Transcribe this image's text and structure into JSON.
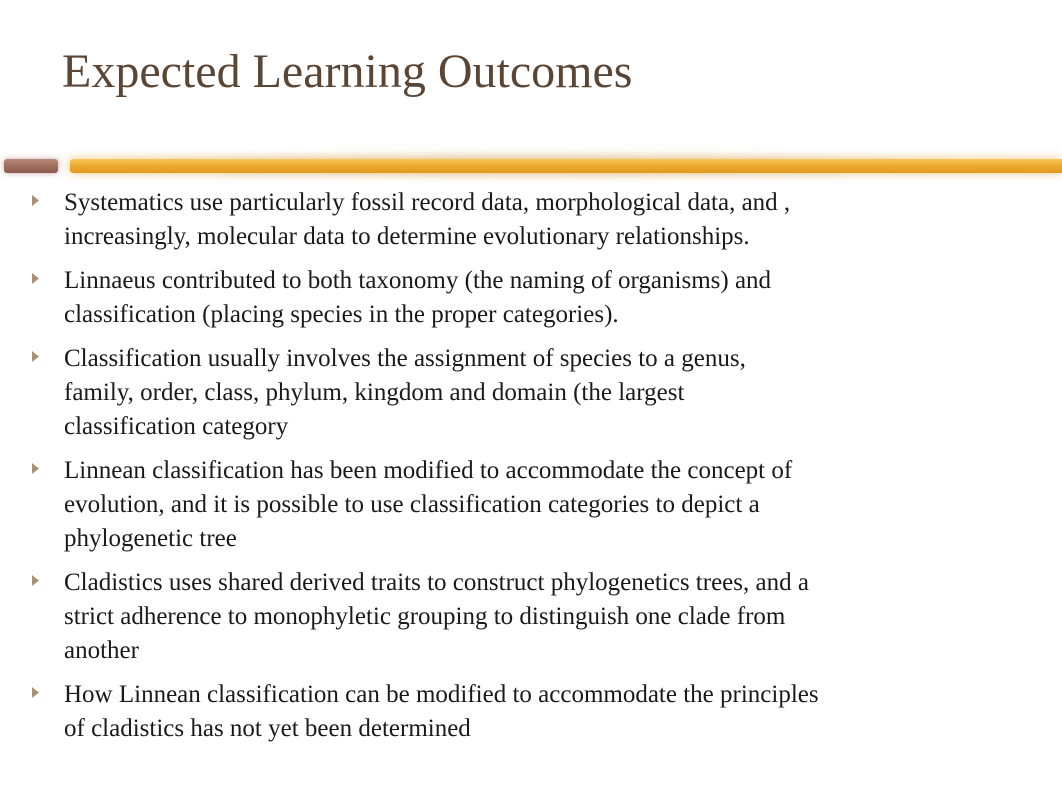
{
  "slide": {
    "title": "Expected Learning Outcomes",
    "title_color": "#5b4636",
    "title_fontsize": 48,
    "background_color": "#ffffff",
    "divider": {
      "left_segment_color_top": "#b58a7a",
      "left_segment_color_bottom": "#8c5a4d",
      "main_segment_color_top": "#f6c75a",
      "main_segment_color_bottom": "#e09a1f",
      "glow_color": "rgba(230,160,40,0.55)"
    },
    "bullet_color": "#9a7b5a",
    "body_text_color": "#1a1a1a",
    "body_fontsize": 25,
    "items": [
      "Systematics use particularly fossil record data, morphological data, and , increasingly, molecular data to determine evolutionary relationships.",
      "Linnaeus contributed to both taxonomy (the naming of organisms) and classification (placing species in the proper categories).",
      "Classification usually involves the assignment of species to a genus, family, order, class, phylum, kingdom and domain (the largest classification category",
      "Linnean classification has been modified to accommodate the concept of evolution, and it is possible to use classification categories to depict a phylogenetic tree",
      "Cladistics uses shared derived traits to construct phylogenetics trees, and a strict adherence to monophyletic grouping to distinguish one clade from another",
      "How Linnean classification can be modified to accommodate the principles of cladistics has not yet been determined"
    ]
  }
}
